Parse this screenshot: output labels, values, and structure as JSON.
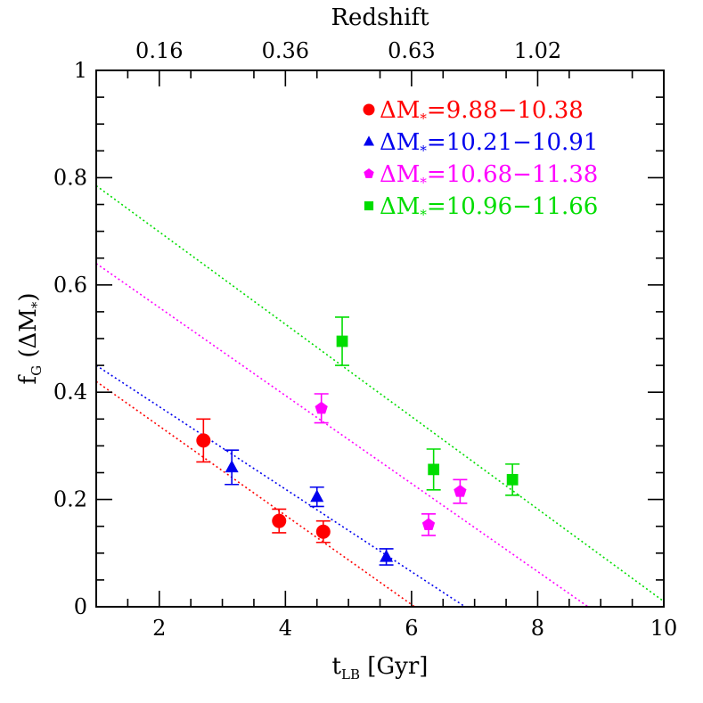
{
  "chart_data": {
    "type": "scatter",
    "title": "",
    "xlabel": "t_LB [Gyr]",
    "ylabel": "f_G (ΔM_*)",
    "top_axis_label": "Redshift",
    "xlim": [
      1,
      10
    ],
    "ylim": [
      0,
      1
    ],
    "x_ticks": [
      2,
      4,
      6,
      8,
      10
    ],
    "y_ticks": [
      0,
      0.2,
      0.4,
      0.6,
      0.8,
      1
    ],
    "x_tick_labels": [
      "2",
      "4",
      "6",
      "8",
      "10"
    ],
    "y_tick_labels": [
      "0",
      "0.2",
      "0.4",
      "0.6",
      "0.8",
      "1"
    ],
    "top_ticks": [
      {
        "label": "0.16",
        "t_lb": 2.0
      },
      {
        "label": "0.36",
        "t_lb": 4.0
      },
      {
        "label": "0.63",
        "t_lb": 6.0
      },
      {
        "label": "1.02",
        "t_lb": 8.0
      }
    ],
    "grid": false,
    "legend_position": "top-right",
    "series": [
      {
        "name": "ΔM*=9.88−10.38",
        "color": "#ff0000",
        "marker": "circle",
        "points": [
          {
            "x": 2.7,
            "y": 0.31,
            "err": 0.04
          },
          {
            "x": 3.9,
            "y": 0.16,
            "err": 0.022
          },
          {
            "x": 4.6,
            "y": 0.14,
            "err": 0.02
          }
        ],
        "fit": {
          "x": [
            1.0,
            6.05
          ],
          "y": [
            0.42,
            0.0
          ]
        }
      },
      {
        "name": "ΔM*=10.21−10.91",
        "color": "#0000ee",
        "marker": "triangle",
        "points": [
          {
            "x": 3.15,
            "y": 0.26,
            "err": 0.032
          },
          {
            "x": 4.5,
            "y": 0.205,
            "err": 0.018
          },
          {
            "x": 5.6,
            "y": 0.093,
            "err": 0.015
          }
        ],
        "fit": {
          "x": [
            1.0,
            6.85
          ],
          "y": [
            0.45,
            0.0
          ]
        }
      },
      {
        "name": "ΔM*=10.68−11.38",
        "color": "#ff00ff",
        "marker": "pentagon",
        "points": [
          {
            "x": 4.57,
            "y": 0.37,
            "err": 0.027
          },
          {
            "x": 6.27,
            "y": 0.153,
            "err": 0.02
          },
          {
            "x": 6.77,
            "y": 0.215,
            "err": 0.022
          }
        ],
        "fit": {
          "x": [
            1.0,
            8.8
          ],
          "y": [
            0.64,
            0.0
          ]
        }
      },
      {
        "name": "ΔM*=10.96−11.66",
        "color": "#00dd00",
        "marker": "square",
        "points": [
          {
            "x": 4.9,
            "y": 0.495,
            "err": 0.045
          },
          {
            "x": 6.35,
            "y": 0.256,
            "err": 0.038
          },
          {
            "x": 7.6,
            "y": 0.237,
            "err": 0.029
          }
        ],
        "fit": {
          "x": [
            1.0,
            10.0
          ],
          "y": [
            0.785,
            0.01
          ]
        }
      }
    ],
    "legend": [
      {
        "prefix": "ΔM",
        "sub": "*",
        "range": "=9.88−10.38",
        "color": "#ff0000",
        "marker": "circle"
      },
      {
        "prefix": "ΔM",
        "sub": "*",
        "range": "=10.21−10.91",
        "color": "#0000ee",
        "marker": "triangle"
      },
      {
        "prefix": "ΔM",
        "sub": "*",
        "range": "=10.68−11.38",
        "color": "#ff00ff",
        "marker": "pentagon"
      },
      {
        "prefix": "ΔM",
        "sub": "*",
        "range": "=10.96−11.66",
        "color": "#00dd00",
        "marker": "square"
      }
    ]
  }
}
